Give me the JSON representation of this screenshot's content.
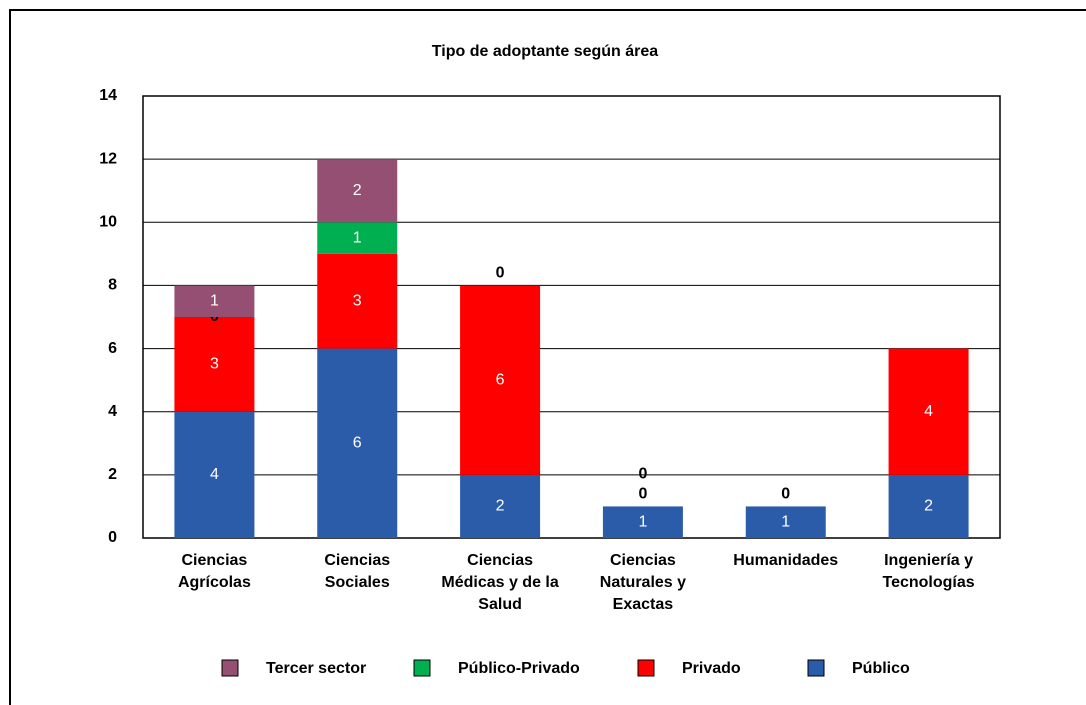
{
  "chart_data": {
    "type": "stacked_bar",
    "title": "Tipo de adoptante según área",
    "categories": [
      "Ciencias Agrícolas",
      "Ciencias Sociales",
      "Ciencias Médicas y de la Salud",
      "Ciencias Naturales y Exactas",
      "Humanidades",
      "Ingeniería y Tecnologías"
    ],
    "series": [
      {
        "name": "Público",
        "color": "#2a5caa",
        "values": [
          4,
          6,
          2,
          1,
          1,
          2
        ]
      },
      {
        "name": "Privado",
        "color": "#ff0000",
        "values": [
          3,
          3,
          6,
          0,
          0,
          4
        ]
      },
      {
        "name": "Público-Privado",
        "color": "#00b050",
        "values": [
          0,
          1,
          0,
          0,
          null,
          null
        ]
      },
      {
        "name": "Tercer sector",
        "color": "#954f72",
        "values": [
          1,
          2,
          null,
          null,
          null,
          null
        ]
      }
    ],
    "ylim": [
      0,
      14
    ],
    "yticks": [
      0,
      2,
      4,
      6,
      8,
      10,
      12,
      14
    ],
    "grid": true,
    "legend": "bottom"
  }
}
